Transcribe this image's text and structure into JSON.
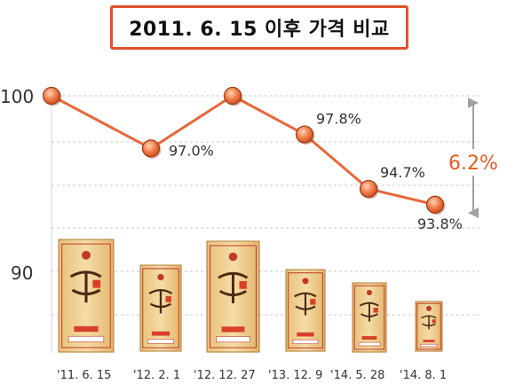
{
  "title": "2011. 6. 15 이후 가격 비교",
  "chart_data": {
    "type": "line",
    "categories": [
      "'11. 6. 15",
      "'12. 2. 1",
      "'12. 12. 27",
      "'13. 12. 9",
      "'14. 5. 28",
      "'14. 8. 1"
    ],
    "values": [
      100,
      97.0,
      100,
      97.8,
      94.7,
      93.8
    ],
    "data_labels": [
      "",
      "97.0%",
      "",
      "97.8%",
      "94.7%",
      "93.8%"
    ],
    "y_ticks": [
      "100",
      "90"
    ],
    "ylim": [
      88,
      100
    ],
    "grid": true,
    "annotation": "6.2%",
    "colors": {
      "line": "#e8673a",
      "marker": "#e8673a",
      "annotation": "#e55a26",
      "arrow": "#a0a0a0"
    },
    "product_box_icons": [
      "product-box-icon",
      "product-box-icon",
      "product-box-icon",
      "product-box-icon",
      "product-box-icon",
      "product-box-icon"
    ]
  }
}
